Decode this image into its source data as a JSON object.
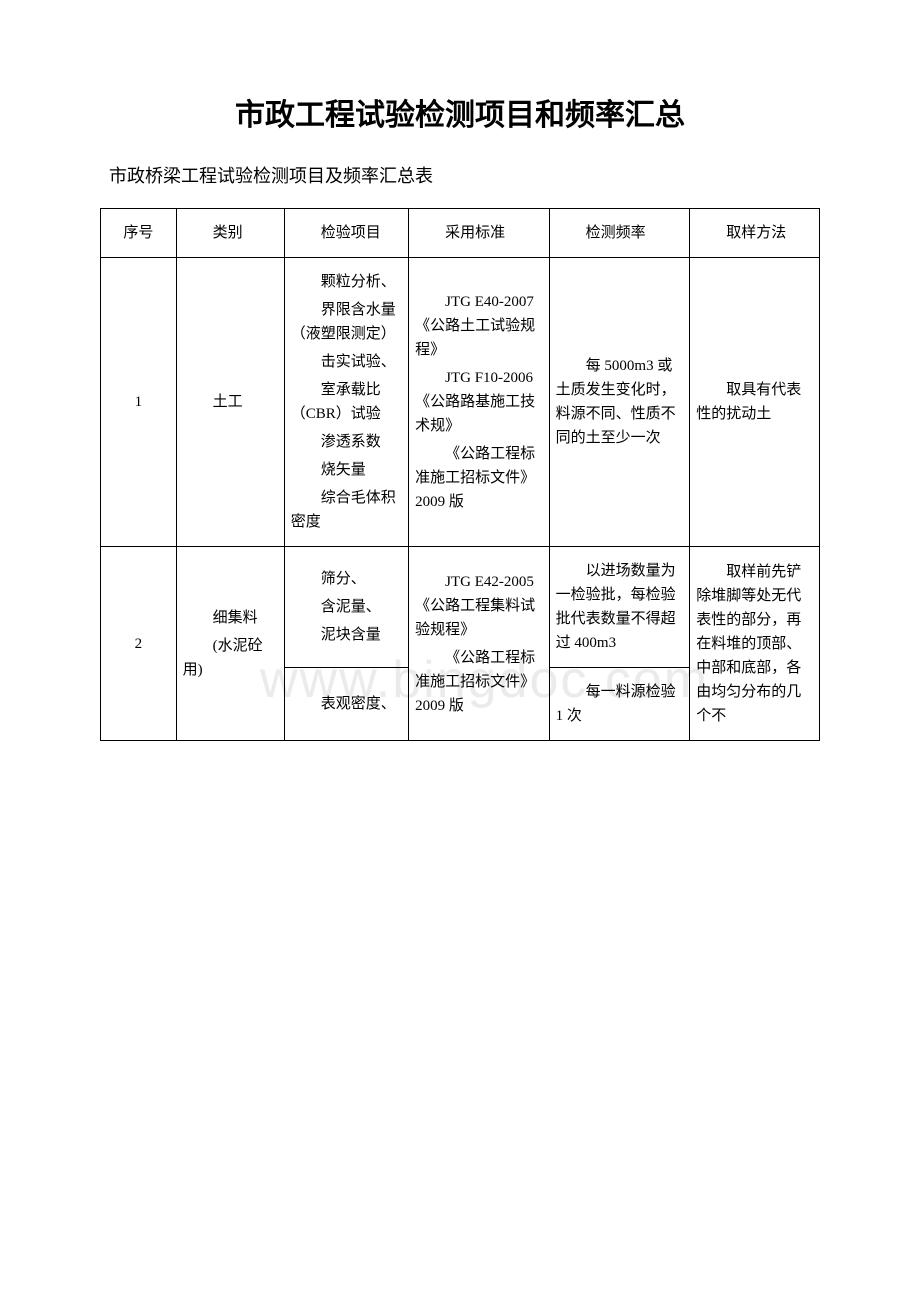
{
  "watermark": "www.bingdoc.com",
  "title": "市政工程试验检测项目和频率汇总",
  "subtitle": "市政桥梁工程试验检测项目及频率汇总表",
  "headers": {
    "c0": "序号",
    "c1": "类别",
    "c2": "检验项目",
    "c3": "采用标准",
    "c4": "检测频率",
    "c5": "取样方法"
  },
  "rows": {
    "r1": {
      "num": "1",
      "category": "土工",
      "test_items": {
        "p1": "颗粒分析、",
        "p2": "界限含水量（液塑限测定）",
        "p3": "击实试验、",
        "p4": "室承载比（CBR）试验",
        "p5": "渗透系数",
        "p6": "烧矢量",
        "p7": "综合毛体积密度"
      },
      "standards": {
        "p1": "JTG E40-2007《公路土工试验规程》",
        "p2": "JTG F10-2006《公路路基施工技术规》",
        "p3": "《公路工程标准施工招标文件》2009 版"
      },
      "frequency": "每 5000m3 或土质发生变化时，料源不同、性质不同的土至少一次",
      "sampling": "取具有代表性的扰动土"
    },
    "r2": {
      "num": "2",
      "category": {
        "p1": "细集料",
        "p2": "(水泥砼用)"
      },
      "test_items_a": {
        "p1": "筛分、",
        "p2": "含泥量、",
        "p3": "泥块含量"
      },
      "test_items_b": {
        "p1": "表观密度、"
      },
      "standards": {
        "p1": "JTG E42-2005《公路工程集料试验规程》",
        "p2": "《公路工程标准施工招标文件》2009 版"
      },
      "frequency_a": "以进场数量为一检验批，每检验批代表数量不得超过 400m3",
      "frequency_b": "每一料源检验 1 次",
      "sampling": "取样前先铲除堆脚等处无代表性的部分，再在料堆的顶部、中部和底部，各由均匀分布的几个不"
    }
  }
}
